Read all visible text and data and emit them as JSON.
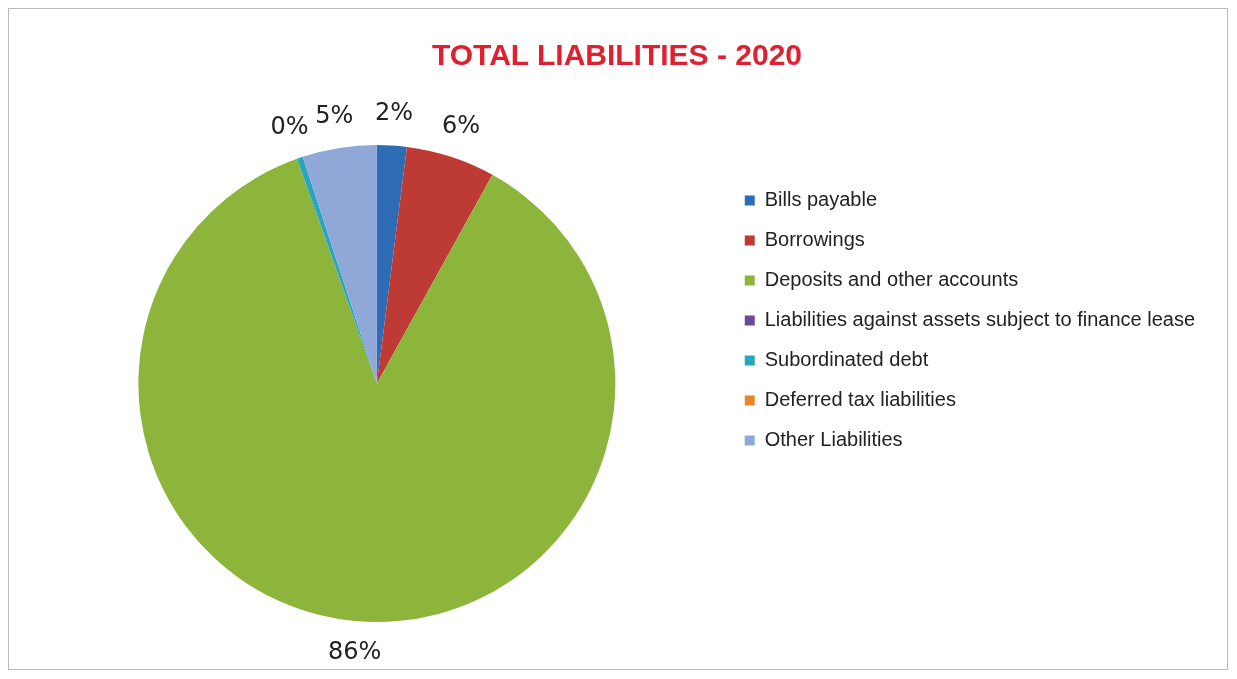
{
  "chart_data": {
    "type": "pie",
    "title": "TOTAL LIABILITIES - 2020",
    "categories": [
      "Bills payable",
      "Borrowings",
      "Deposits and other accounts",
      "Liabilities against assets subject to finance lease",
      "Subordinated debt",
      "Deferred tax liabilities",
      "Other Liabilities"
    ],
    "values": [
      2,
      6,
      86,
      0,
      0.4,
      0,
      5
    ],
    "value_labels": [
      "2%",
      "6%",
      "86%",
      null,
      "0%",
      null,
      "5%"
    ],
    "colors": [
      "#2e6db5",
      "#be3a34",
      "#8db53c",
      "#6a4a9a",
      "#2aa5c0",
      "#e8862a",
      "#8fa8d8"
    ],
    "legend": "right"
  }
}
